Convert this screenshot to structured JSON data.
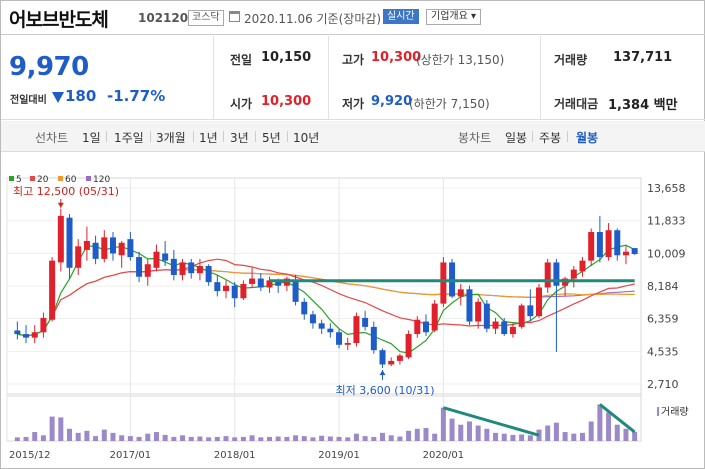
{
  "header": {
    "stock_name": "어보브반도체",
    "stock_code": "102120",
    "market_badge": "코스닥",
    "date_text": "2020.11.06 기준(장마감)",
    "realtime_button": "실시간",
    "company_info_button": "기업개요 ▾"
  },
  "quote": {
    "price": "9,970",
    "change_label": "전일대비",
    "change": "180",
    "change_pct": "-1.77%",
    "prev_close_label": "전일",
    "prev_close": "10,150",
    "high_label": "고가",
    "high": "10,300",
    "high_limit": "(상한가 13,150)",
    "volume_label": "거래량",
    "volume": "137,711",
    "open_label": "시가",
    "open": "10,300",
    "low_label": "저가",
    "low": "9,920",
    "low_limit": "(하한가 7,150)",
    "amount_label": "거래대금",
    "amount": "1,384 백만"
  },
  "toolbar": {
    "line_chart_label": "선차트",
    "periods": [
      "1일",
      "1주일",
      "3개월",
      "1년",
      "3년",
      "5년",
      "10년"
    ],
    "candle_label": "봉차트",
    "candle_periods": [
      "일봉",
      "주봉",
      "월봉"
    ],
    "selected_candle": "월봉"
  },
  "colors": {
    "up": "#e0202a",
    "down": "#1e5dc8",
    "ma5": "#2aa22a",
    "ma20": "#e24a4a",
    "ma60": "#f09a2a",
    "ma120": "#9b6bcc",
    "volume": "#9c89c8",
    "trendline": "#1d8a7a"
  },
  "chart_data": {
    "type": "candlestick",
    "legend": [
      {
        "name": "5",
        "color": "#2aa22a"
      },
      {
        "name": "20",
        "color": "#e24a4a"
      },
      {
        "name": "60",
        "color": "#f09a2a"
      },
      {
        "name": "120",
        "color": "#9b6bcc"
      }
    ],
    "y_ticks": [
      "13,658",
      "11,833",
      "10,009",
      "8,184",
      "6,359",
      "4,535",
      "2,710"
    ],
    "ylim": [
      2710,
      13658
    ],
    "x_ticks": [
      "2015/12",
      "2017/01",
      "2018/01",
      "2019/01",
      "2020/01"
    ],
    "high_annotation": "최고 12,500 (05/31)",
    "low_annotation": "최저 3,600 (10/31)",
    "volume_label": "거래량",
    "candles": [
      [
        5700,
        6200,
        5200,
        5500
      ],
      [
        5500,
        6000,
        5000,
        5300
      ],
      [
        5300,
        6000,
        5000,
        5600
      ],
      [
        5600,
        6700,
        5300,
        6400
      ],
      [
        6300,
        9800,
        6200,
        9600
      ],
      [
        9500,
        12500,
        9000,
        12100
      ],
      [
        12000,
        12200,
        8600,
        9200
      ],
      [
        9200,
        10800,
        8800,
        10400
      ],
      [
        10200,
        11500,
        9600,
        10700
      ],
      [
        10600,
        11000,
        9400,
        9700
      ],
      [
        9700,
        11300,
        9500,
        10900
      ],
      [
        10900,
        11200,
        9600,
        10000
      ],
      [
        9900,
        10700,
        9200,
        10600
      ],
      [
        10800,
        11200,
        9600,
        9800
      ],
      [
        9800,
        10100,
        8400,
        8700
      ],
      [
        8700,
        9700,
        8200,
        9400
      ],
      [
        9200,
        10500,
        9000,
        10100
      ],
      [
        10000,
        10700,
        9300,
        9600
      ],
      [
        9700,
        10200,
        8500,
        8800
      ],
      [
        8800,
        9700,
        8500,
        9500
      ],
      [
        9500,
        9700,
        8600,
        8900
      ],
      [
        8900,
        9700,
        8500,
        9300
      ],
      [
        9300,
        9400,
        8200,
        8400
      ],
      [
        8400,
        8800,
        7600,
        7900
      ],
      [
        7900,
        8500,
        7500,
        8200
      ],
      [
        8200,
        8400,
        7000,
        7500
      ],
      [
        7500,
        8500,
        7400,
        8300
      ],
      [
        8300,
        9200,
        8100,
        8600
      ],
      [
        8600,
        8900,
        7900,
        8100
      ],
      [
        8100,
        8700,
        7800,
        8500
      ],
      [
        8500,
        8600,
        7800,
        8200
      ],
      [
        8200,
        8700,
        7900,
        8600
      ],
      [
        8500,
        8800,
        7100,
        7300
      ],
      [
        7300,
        7500,
        6300,
        6600
      ],
      [
        6600,
        6800,
        5800,
        6100
      ],
      [
        6100,
        6300,
        5500,
        5800
      ],
      [
        5800,
        6100,
        5300,
        5600
      ],
      [
        5600,
        5800,
        4700,
        4900
      ],
      [
        4900,
        5300,
        4600,
        5000
      ],
      [
        5000,
        6700,
        4800,
        6500
      ],
      [
        6400,
        6800,
        5700,
        5900
      ],
      [
        5900,
        6200,
        4400,
        4600
      ],
      [
        4600,
        4700,
        3600,
        3800
      ],
      [
        3800,
        4200,
        3700,
        4000
      ],
      [
        4000,
        4400,
        3800,
        4300
      ],
      [
        4200,
        5700,
        4100,
        5500
      ],
      [
        5500,
        6500,
        5300,
        6300
      ],
      [
        6200,
        6600,
        5400,
        5600
      ],
      [
        5700,
        7400,
        5600,
        7200
      ],
      [
        7200,
        9800,
        7000,
        9500
      ],
      [
        9500,
        9700,
        7500,
        7600
      ],
      [
        7600,
        8300,
        7100,
        8000
      ],
      [
        8000,
        8200,
        6000,
        6200
      ],
      [
        6200,
        7500,
        5800,
        7300
      ],
      [
        7200,
        7400,
        5600,
        5800
      ],
      [
        5800,
        6400,
        5500,
        6200
      ],
      [
        6200,
        6400,
        5400,
        5500
      ],
      [
        5500,
        6100,
        5300,
        5900
      ],
      [
        5900,
        7200,
        5800,
        7100
      ],
      [
        7100,
        8000,
        6200,
        6500
      ],
      [
        6500,
        8300,
        6400,
        8100
      ],
      [
        8100,
        9700,
        7800,
        9500
      ],
      [
        9500,
        9700,
        4500,
        8200
      ],
      [
        8200,
        8700,
        7600,
        8600
      ],
      [
        8600,
        9300,
        8100,
        9100
      ],
      [
        9000,
        9800,
        8700,
        9600
      ],
      [
        9600,
        11400,
        9300,
        11200
      ],
      [
        11200,
        12100,
        9500,
        9800
      ],
      [
        9800,
        11700,
        9600,
        11300
      ],
      [
        11300,
        11400,
        9600,
        9900
      ],
      [
        9900,
        10400,
        9400,
        10100
      ],
      [
        10300,
        10300,
        9920,
        9970
      ]
    ],
    "volumes": [
      9,
      10,
      22,
      14,
      60,
      58,
      30,
      20,
      25,
      12,
      28,
      20,
      14,
      12,
      10,
      18,
      22,
      15,
      10,
      14,
      10,
      11,
      9,
      10,
      12,
      9,
      10,
      14,
      9,
      10,
      11,
      10,
      14,
      12,
      9,
      13,
      11,
      10,
      9,
      18,
      12,
      10,
      20,
      14,
      11,
      25,
      30,
      32,
      18,
      82,
      55,
      40,
      48,
      38,
      30,
      20,
      18,
      15,
      16,
      14,
      28,
      38,
      45,
      22,
      18,
      20,
      48,
      90,
      70,
      40,
      30,
      22
    ],
    "trendlines": [
      {
        "name": "horizontal-resistance",
        "from": [
          29,
          8480
        ],
        "to": [
          71,
          8480
        ]
      },
      {
        "name": "volume-trend-1",
        "from": [
          49,
          82
        ],
        "to": [
          60,
          14
        ],
        "panel": "volume"
      },
      {
        "name": "volume-trend-2",
        "from": [
          67,
          90
        ],
        "to": [
          71,
          22
        ],
        "panel": "volume"
      }
    ]
  }
}
